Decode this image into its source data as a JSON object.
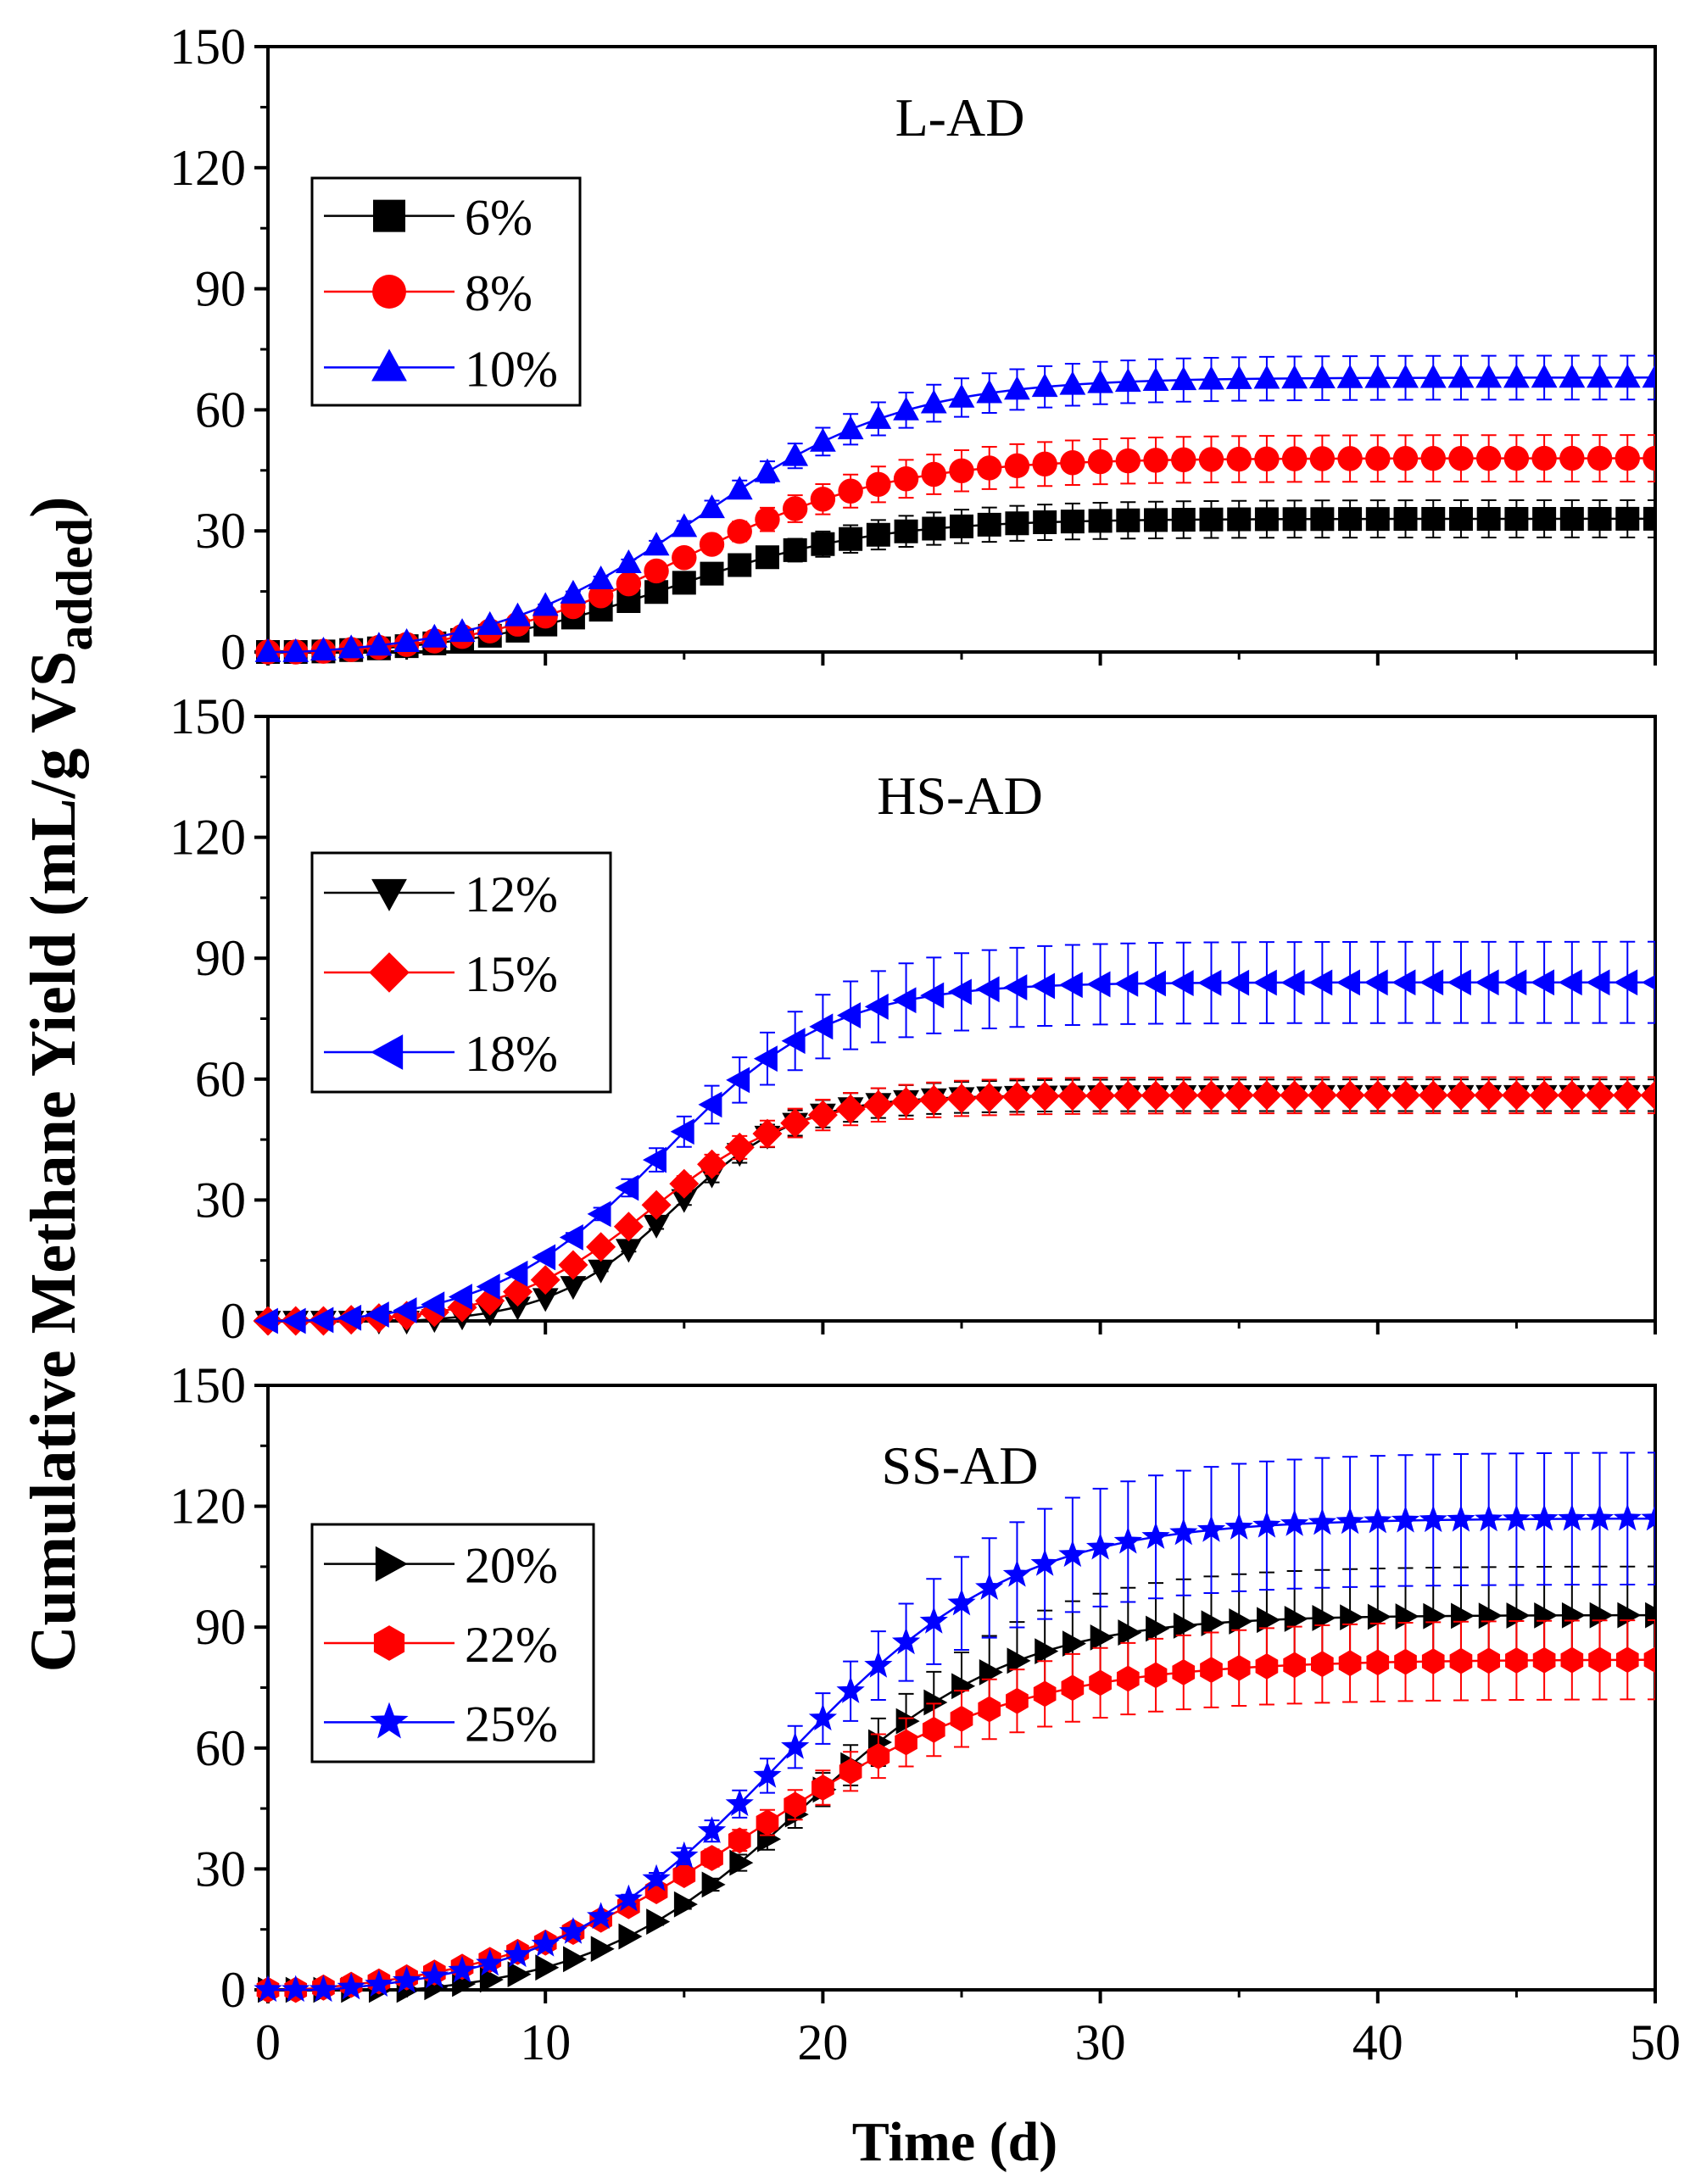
{
  "chart_data": {
    "type": "line",
    "ylabel": "Cumulative Methane Yield (mL/g VS",
    "ylabel_sub": "added",
    "ylabel_close": ")",
    "xlabel": "Time (d)",
    "xlim": [
      0,
      50
    ],
    "xticks": [
      "0",
      "10",
      "20",
      "30",
      "40",
      "50"
    ],
    "ylim": [
      0,
      150
    ],
    "yticks": [
      "0",
      "30",
      "60",
      "90",
      "120",
      "150"
    ],
    "panels": [
      {
        "title": "L-AD",
        "series": [
          {
            "name": "6%",
            "color": "#000000",
            "marker": "square",
            "plateau": 33,
            "center": 14.5,
            "k": 0.27,
            "onset": 1.5,
            "err": [
              0.02,
              0.14
            ],
            "legend": "6%"
          },
          {
            "name": "8%",
            "color": "#ff0000",
            "marker": "circle",
            "plateau": 48,
            "center": 15.0,
            "k": 0.27,
            "onset": 1.5,
            "err": [
              0.02,
              0.12
            ],
            "legend": "8%"
          },
          {
            "name": "10%",
            "color": "#0000ff",
            "marker": "triangle-up",
            "plateau": 68,
            "center": 15.5,
            "k": 0.27,
            "onset": 1.0,
            "err": [
              0.02,
              0.08
            ],
            "legend": "10%"
          }
        ]
      },
      {
        "title": "HS-AD",
        "series": [
          {
            "name": "12%",
            "color": "#000000",
            "marker": "triangle-down",
            "plateau": 56,
            "center": 14.6,
            "k": 0.45,
            "onset": 5.0,
            "err": [
              0.02,
              0.07
            ],
            "legend": "12%"
          },
          {
            "name": "15%",
            "color": "#ff0000",
            "marker": "diamond",
            "plateau": 56,
            "center": 13.8,
            "k": 0.38,
            "onset": 2.0,
            "err": [
              0.02,
              0.08
            ],
            "legend": "15%"
          },
          {
            "name": "18%",
            "color": "#0000ff",
            "marker": "triangle-left",
            "plateau": 84,
            "center": 14.2,
            "k": 0.33,
            "onset": 1.5,
            "err": [
              0.03,
              0.12
            ],
            "legend": "18%"
          }
        ]
      },
      {
        "title": "SS-AD",
        "series": [
          {
            "name": "20%",
            "color": "#000000",
            "marker": "triangle-right",
            "plateau": 93,
            "center": 19.3,
            "k": 0.26,
            "onset": 5.0,
            "err": [
              0.03,
              0.13
            ],
            "legend": "20%"
          },
          {
            "name": "22%",
            "color": "#ff0000",
            "marker": "hexagon",
            "plateau": 82,
            "center": 17.6,
            "k": 0.21,
            "onset": 1.0,
            "err": [
              0.03,
              0.12
            ],
            "legend": "22%"
          },
          {
            "name": "25%",
            "color": "#0000ff",
            "marker": "star",
            "plateau": 117,
            "center": 18.6,
            "k": 0.24,
            "onset": 2.0,
            "err": [
              0.03,
              0.14
            ],
            "legend": "25%"
          }
        ]
      }
    ]
  }
}
